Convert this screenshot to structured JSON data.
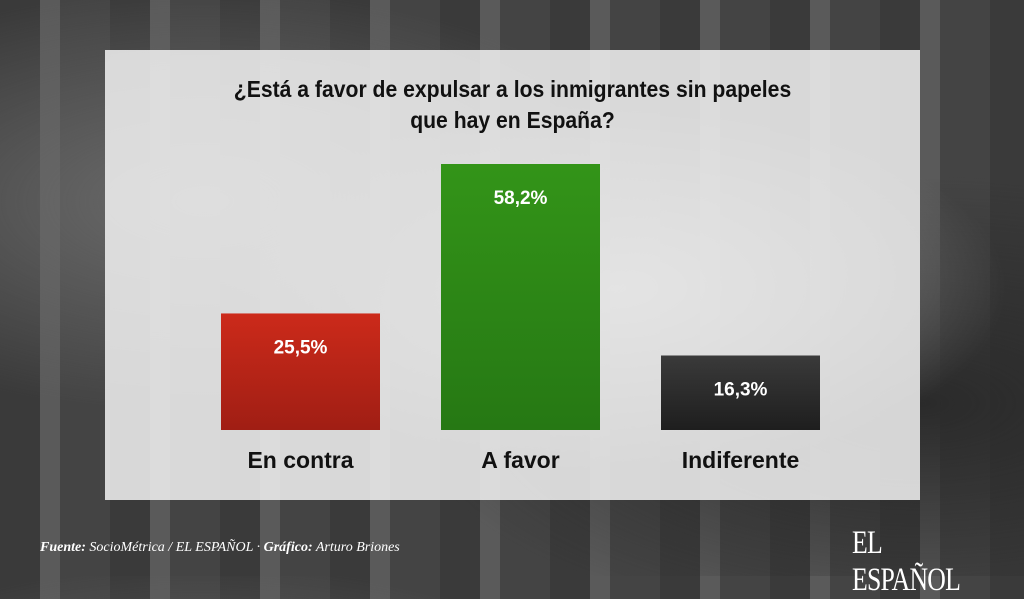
{
  "chart_data": {
    "type": "bar",
    "title": "¿Está a favor de expulsar a los inmigrantes sin papeles que hay en España?",
    "title_lines": [
      "¿Está a favor de expulsar a los inmigrantes sin papeles",
      "que hay en España?"
    ],
    "categories": [
      "En contra",
      "A favor",
      "Indiferente"
    ],
    "values": [
      25.5,
      58.2,
      16.3
    ],
    "data_labels": [
      "25,5%",
      "58,2%",
      "16,3%"
    ],
    "colors": [
      "#c0271a",
      "#2f8a18",
      "#2b2b2b"
    ],
    "xlabel": "",
    "ylabel": "",
    "ylim": [
      0,
      60
    ],
    "grid": false,
    "legend": "none"
  },
  "footer": {
    "source_label": "Fuente:",
    "source": "SocioMétrica / EL ESPAÑOL",
    "separator": "·",
    "graphic_label": "Gráfico:",
    "graphic": "Arturo Briones"
  },
  "logo": "EL ESPAÑOL"
}
